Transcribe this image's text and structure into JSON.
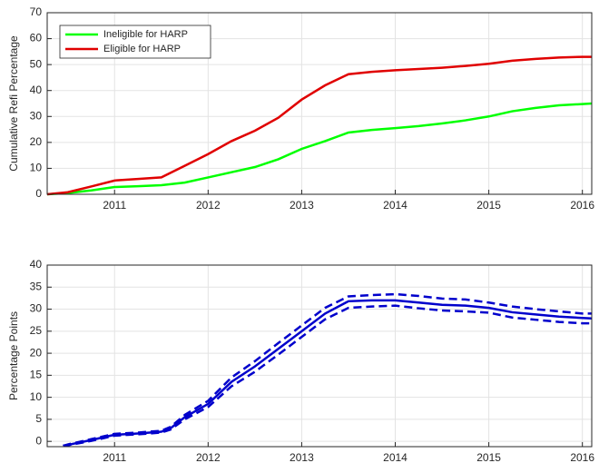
{
  "chart_data": [
    {
      "type": "line",
      "ylabel": "Cumulative Refi Percentage",
      "x": [
        2010.28,
        2010.5,
        2010.75,
        2011,
        2011.25,
        2011.5,
        2011.75,
        2012,
        2012.25,
        2012.5,
        2012.75,
        2013,
        2013.25,
        2013.5,
        2013.75,
        2014,
        2014.25,
        2014.5,
        2014.75,
        2015,
        2015.25,
        2015.5,
        2015.75,
        2016,
        2016.1
      ],
      "series": [
        {
          "name": "Ineligible for HARP",
          "color": "#00ff00",
          "style": "solid",
          "values": [
            0,
            0.5,
            1.5,
            2.8,
            3.1,
            3.5,
            4.5,
            6.5,
            8.5,
            10.5,
            13.5,
            17.5,
            20.5,
            23.8,
            24.8,
            25.5,
            26.3,
            27.3,
            28.5,
            30,
            32,
            33.3,
            34.3,
            34.8,
            35
          ]
        },
        {
          "name": "Eligible for HARP",
          "color": "#e00000",
          "style": "solid",
          "values": [
            0,
            0.8,
            3,
            5.3,
            5.9,
            6.5,
            11,
            15.5,
            20.5,
            24.5,
            29.5,
            36.5,
            42,
            46.3,
            47.2,
            47.8,
            48.3,
            48.8,
            49.5,
            50.3,
            51.5,
            52.2,
            52.7,
            53,
            53
          ]
        }
      ],
      "xlim": [
        2010.28,
        2016.1
      ],
      "ylim": [
        0,
        70
      ],
      "xticks": [
        2011,
        2012,
        2013,
        2014,
        2015,
        2016
      ],
      "yticks": [
        0,
        10,
        20,
        30,
        40,
        50,
        60,
        70
      ],
      "grid": true,
      "legend": "upper-left"
    },
    {
      "type": "line",
      "ylabel": "Percentage Points",
      "x": [
        2010.45,
        2010.5,
        2010.75,
        2011,
        2011.25,
        2011.5,
        2011.6,
        2011.75,
        2012,
        2012.25,
        2012.5,
        2012.75,
        2013,
        2013.25,
        2013.5,
        2013.75,
        2014,
        2014.25,
        2014.5,
        2014.75,
        2015,
        2015.25,
        2015.5,
        2015.75,
        2016,
        2016.1
      ],
      "series": [
        {
          "color": "#0000cc",
          "style": "solid",
          "values": [
            -1,
            -0.8,
            0.3,
            1.5,
            1.8,
            2.2,
            3,
            5.5,
            8.5,
            13.5,
            17,
            21,
            25,
            29,
            31.8,
            32,
            32,
            31.5,
            31,
            30.8,
            30.3,
            29.3,
            28.8,
            28.3,
            28,
            27.9
          ]
        },
        {
          "color": "#0000cc",
          "style": "dashed",
          "values": [
            -1,
            -0.7,
            0.5,
            1.7,
            2,
            2.4,
            3.3,
            6,
            9.2,
            14.5,
            18.2,
            22.3,
            26.3,
            30.3,
            32.9,
            33.2,
            33.4,
            33,
            32.4,
            32.2,
            31.5,
            30.6,
            30,
            29.5,
            29,
            29
          ]
        },
        {
          "color": "#0000cc",
          "style": "dashed",
          "values": [
            -1,
            -0.9,
            0.1,
            1.3,
            1.6,
            2,
            2.7,
            5,
            7.8,
            12.5,
            15.8,
            19.7,
            23.7,
            27.7,
            30.3,
            30.6,
            30.8,
            30.2,
            29.7,
            29.5,
            29.2,
            28.1,
            27.6,
            27.1,
            26.8,
            26.8
          ]
        }
      ],
      "xlim": [
        2010.28,
        2016.1
      ],
      "ylim": [
        -1.2,
        40
      ],
      "xticks": [
        2011,
        2012,
        2013,
        2014,
        2015,
        2016
      ],
      "yticks": [
        0,
        5,
        10,
        15,
        20,
        25,
        30,
        35,
        40
      ],
      "grid": true
    }
  ]
}
